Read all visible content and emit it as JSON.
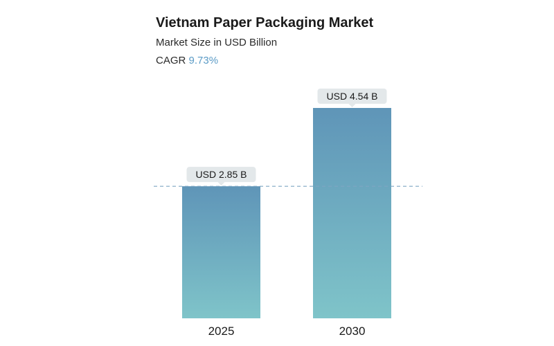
{
  "header": {
    "title": "Vietnam Paper Packaging Market",
    "subtitle": "Market Size in USD Billion",
    "cagr_label": "CAGR",
    "cagr_value": "9.73%"
  },
  "colors": {
    "bar_top": "#5f95b8",
    "bar_bottom": "#7fc4c9",
    "label_bg": "#e3e8ea",
    "dashed_line": "#7ea6c4",
    "cagr_accent": "#5b9bc6"
  },
  "chart_data": {
    "type": "bar",
    "title": "Vietnam Paper Packaging Market",
    "subtitle": "Market Size in USD Billion",
    "categories": [
      "2025",
      "2030"
    ],
    "values": [
      2.85,
      4.54
    ],
    "data_labels": [
      "USD 2.85 B",
      "USD 4.54 B"
    ],
    "ylim": [
      0,
      4.54
    ],
    "reference_line": 2.85,
    "grid": false,
    "legend": "none"
  }
}
